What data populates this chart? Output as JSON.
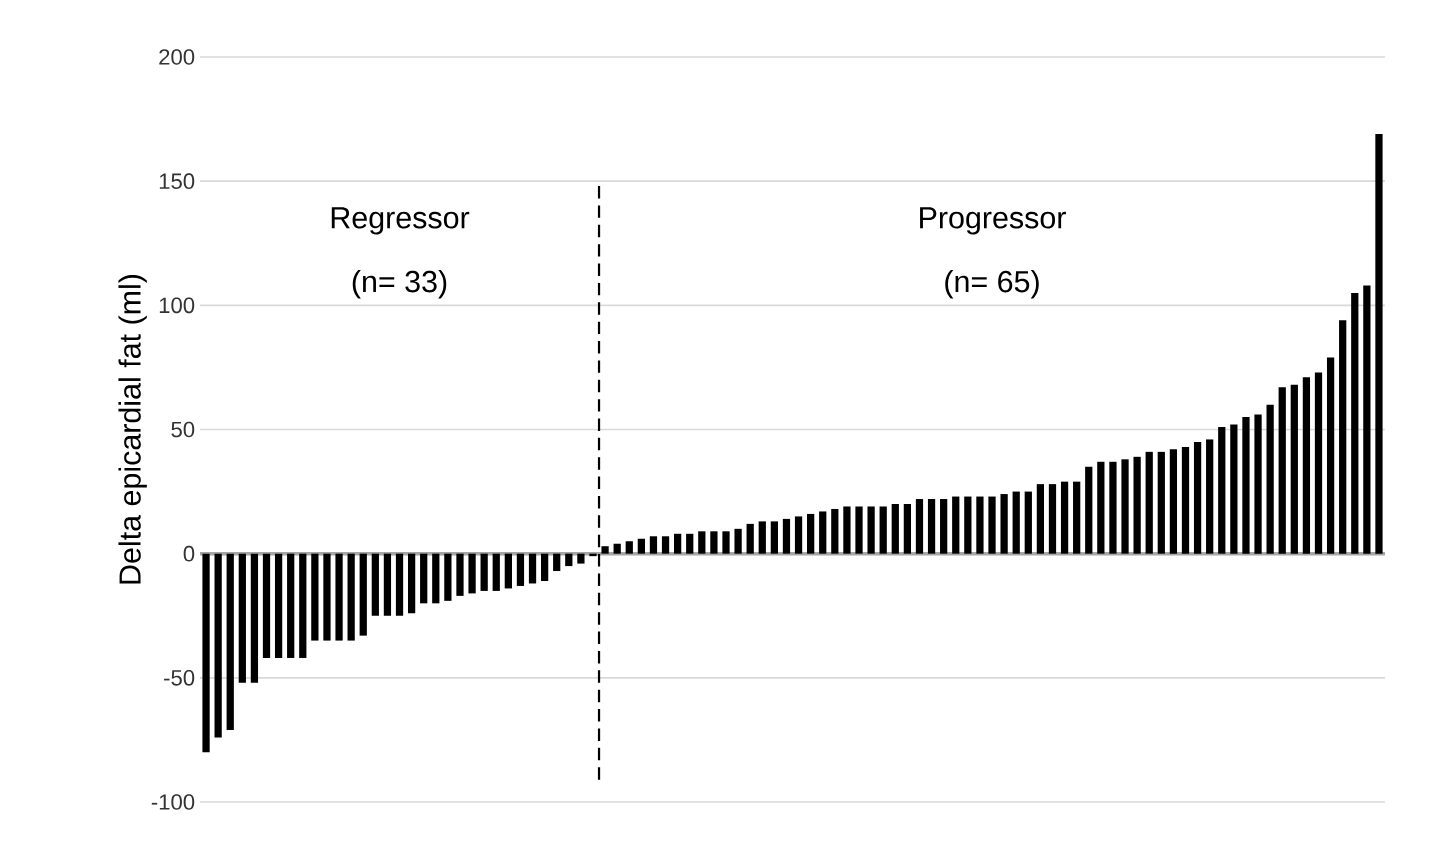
{
  "chart_data": {
    "type": "bar",
    "ylabel": "Delta epicardial fat (ml)",
    "categories": [
      null,
      null,
      null,
      null,
      null,
      null,
      null,
      null,
      null,
      null,
      null,
      null,
      null,
      null,
      null,
      null,
      null,
      null,
      null,
      null,
      null,
      null,
      null,
      null,
      null,
      null,
      null,
      null,
      null,
      null,
      null,
      null,
      null,
      null,
      null,
      null,
      null,
      null,
      null,
      null,
      null,
      null,
      null,
      null,
      null,
      null,
      null,
      null,
      null,
      null,
      null,
      null,
      null,
      null,
      null,
      null,
      null,
      null,
      null,
      null,
      null,
      null,
      null,
      null,
      null,
      null,
      null,
      null,
      null,
      null,
      null,
      null,
      null,
      null,
      null,
      null,
      null,
      null,
      null,
      null,
      null,
      null,
      null,
      null,
      null,
      null,
      null,
      null,
      null,
      null,
      null,
      null,
      null,
      null,
      null,
      null,
      null,
      null
    ],
    "values": [
      -80,
      -74,
      -71,
      -52,
      -52,
      -42,
      -42,
      -42,
      -42,
      -35,
      -35,
      -35,
      -35,
      -33,
      -25,
      -25,
      -25,
      -24,
      -20,
      -20,
      -19,
      -17,
      -16,
      -15,
      -15,
      -14,
      -13,
      -12,
      -11,
      -7,
      -5,
      -4,
      -1,
      3,
      4,
      5,
      6,
      7,
      7,
      8,
      8,
      9,
      9,
      9,
      10,
      12,
      13,
      13,
      14,
      15,
      16,
      17,
      18,
      19,
      19,
      19,
      19,
      20,
      20,
      22,
      22,
      22,
      23,
      23,
      23,
      23,
      24,
      25,
      25,
      28,
      28,
      29,
      29,
      35,
      37,
      37,
      38,
      39,
      41,
      41,
      42,
      43,
      45,
      46,
      51,
      52,
      55,
      56,
      60,
      67,
      68,
      71,
      73,
      79,
      94,
      105,
      108,
      169
    ],
    "color": "#000000",
    "ylim": [
      -100,
      200
    ],
    "yticks": [
      -100,
      -50,
      0,
      50,
      100,
      150,
      200
    ],
    "grid": "y",
    "annotations": [
      "Regressor",
      "(n= 33)",
      "Progressor",
      "(n= 65)"
    ]
  }
}
